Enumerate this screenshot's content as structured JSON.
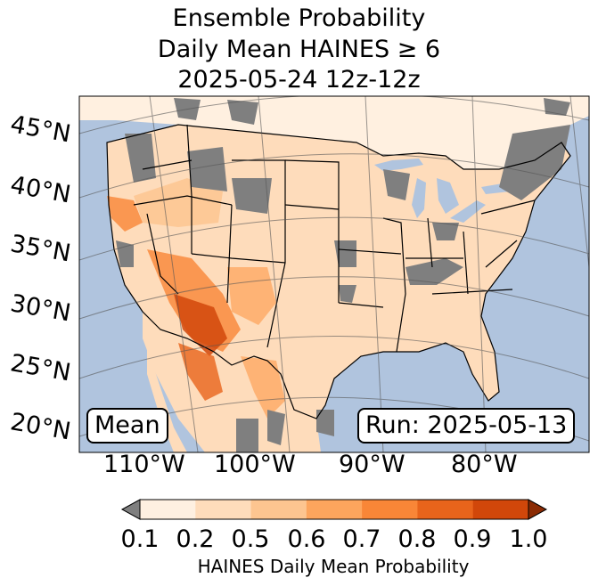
{
  "title": {
    "line1": "Ensemble Probability",
    "line2": "Daily Mean HAINES ≥ 6",
    "line3": "2025-05-24 12z-12z"
  },
  "lat_labels": [
    "45°N",
    "40°N",
    "35°N",
    "30°N",
    "25°N",
    "20°N"
  ],
  "lon_labels": [
    "110°W",
    "100°W",
    "90°W",
    "80°W"
  ],
  "stat_label": "Mean",
  "run_label": "Run: 2025-05-13",
  "colorbar": {
    "ticks": [
      "0.1",
      "0.2",
      "0.5",
      "0.6",
      "0.7",
      "0.8",
      "0.9",
      "1.0"
    ],
    "label": "HAINES Daily Mean Probability",
    "colors": [
      "#fef0e1",
      "#fedcbb",
      "#fdc590",
      "#fda55d",
      "#f98637",
      "#e8641b",
      "#d1470a"
    ],
    "under_color": "#7f7f7f",
    "over_color": "#8b2b04"
  },
  "colors": {
    "ocean": "#b0c4de",
    "land_base": "#fedcbb",
    "missing": "#7f7f7f"
  }
}
